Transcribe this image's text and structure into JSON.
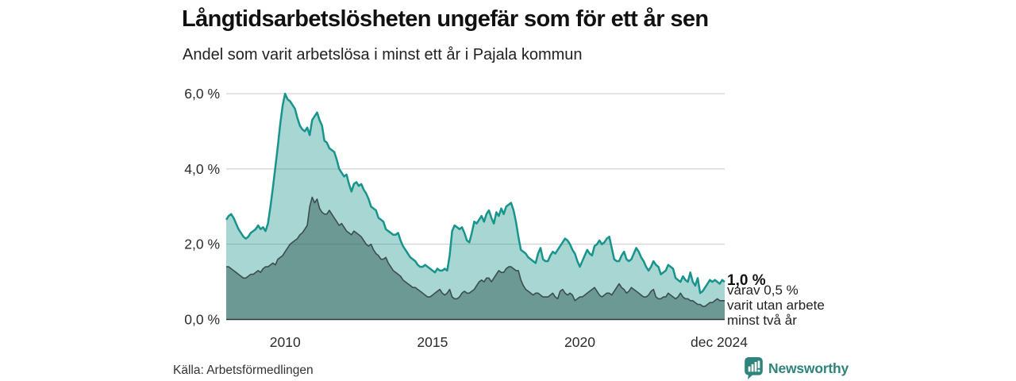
{
  "header": {
    "title": "Långtidsarbetslösheten ungefär som för ett år sen",
    "subtitle": "Andel som varit arbetslösa i minst ett år i Pajala kommun"
  },
  "footer": {
    "source": "Källa: Arbetsförmedlingen",
    "logo_text": "Newsworthy",
    "logo_icon": "bar-chart-speech-bubble-icon"
  },
  "colors": {
    "line_total": "#17948b",
    "fill_total": "rgba(23,148,139,0.38)",
    "line_two_years": "#3b4d4d",
    "fill_two_years": "rgba(40,80,74,0.45)",
    "gridline": "#c9c9c9",
    "baseline": "#333333",
    "axis_text": "#2b2b2b",
    "logo_teal": "#2e837a"
  },
  "chart_data": {
    "type": "area",
    "title": "Långtidsarbetslösheten ungefär som för ett år sen",
    "subtitle": "Andel som varit arbetslösa i minst ett år i Pajala kommun",
    "unit": "%",
    "frequency": "monthly",
    "start": "2008-01",
    "end": "2024-12",
    "grid": true,
    "ylim": [
      0,
      6
    ],
    "y_ticks": [
      {
        "value": 0,
        "label": "0,0 %"
      },
      {
        "value": 2,
        "label": "2,0 %"
      },
      {
        "value": 4,
        "label": "4,0 %"
      },
      {
        "value": 6,
        "label": "6,0 %"
      }
    ],
    "x_ticks": [
      {
        "index": 24,
        "label": "2010"
      },
      {
        "index": 84,
        "label": "2015"
      },
      {
        "index": 144,
        "label": "2020"
      },
      {
        "index": 203,
        "label": "dec 2024"
      }
    ],
    "end_labels": {
      "value_label": "1,0 %",
      "annotation_line1": "varav 0,5 %",
      "annotation_line2": "varit utan arbete",
      "annotation_line3": "minst två år"
    },
    "series": [
      {
        "name": "minst ett år",
        "values": [
          2.65,
          2.75,
          2.8,
          2.7,
          2.55,
          2.4,
          2.3,
          2.2,
          2.15,
          2.2,
          2.3,
          2.35,
          2.4,
          2.5,
          2.4,
          2.45,
          2.35,
          2.55,
          3.0,
          3.5,
          4.05,
          4.6,
          5.2,
          5.7,
          6.0,
          5.85,
          5.8,
          5.7,
          5.6,
          5.35,
          5.15,
          5.05,
          5.0,
          5.1,
          4.9,
          5.3,
          5.4,
          5.5,
          5.3,
          5.15,
          4.75,
          4.7,
          4.55,
          4.5,
          4.45,
          4.25,
          4.0,
          3.9,
          3.8,
          3.85,
          3.6,
          3.4,
          3.6,
          3.65,
          3.55,
          3.6,
          3.45,
          3.35,
          3.2,
          3.0,
          2.95,
          2.9,
          2.7,
          2.65,
          2.6,
          2.4,
          2.35,
          2.3,
          2.25,
          2.25,
          2.3,
          2.1,
          1.95,
          1.85,
          1.75,
          1.65,
          1.6,
          1.55,
          1.45,
          1.4,
          1.4,
          1.45,
          1.4,
          1.35,
          1.3,
          1.25,
          1.35,
          1.3,
          1.3,
          1.35,
          1.3,
          1.7,
          2.35,
          2.5,
          2.45,
          2.4,
          2.45,
          2.3,
          2.1,
          2.05,
          2.3,
          2.6,
          2.55,
          2.65,
          2.75,
          2.6,
          2.8,
          2.9,
          2.7,
          2.55,
          2.85,
          2.75,
          2.95,
          2.8,
          3.0,
          3.05,
          3.1,
          2.9,
          2.6,
          2.2,
          1.85,
          1.8,
          1.75,
          1.65,
          1.6,
          1.55,
          1.5,
          1.75,
          1.9,
          1.6,
          1.55,
          1.55,
          1.7,
          1.8,
          1.75,
          1.85,
          1.95,
          2.05,
          2.15,
          2.1,
          2.0,
          1.85,
          1.75,
          1.55,
          1.4,
          1.55,
          1.7,
          1.85,
          1.75,
          1.7,
          1.95,
          2.0,
          2.1,
          2.0,
          2.05,
          2.15,
          2.2,
          1.9,
          1.6,
          1.55,
          1.55,
          1.7,
          1.8,
          1.6,
          1.55,
          1.6,
          1.75,
          1.9,
          1.8,
          1.65,
          1.55,
          1.4,
          1.3,
          1.4,
          1.55,
          1.45,
          1.4,
          1.2,
          1.25,
          1.3,
          1.45,
          1.4,
          1.35,
          1.1,
          1.05,
          1.0,
          1.15,
          1.05,
          1.0,
          1.25,
          1.0,
          0.9,
          1.1,
          0.7,
          0.75,
          0.85,
          0.95,
          1.05,
          1.0,
          1.05,
          1.0,
          0.95,
          1.05,
          1.0
        ]
      },
      {
        "name": "minst två år",
        "values": [
          1.4,
          1.4,
          1.35,
          1.3,
          1.25,
          1.2,
          1.15,
          1.1,
          1.1,
          1.15,
          1.2,
          1.2,
          1.25,
          1.3,
          1.25,
          1.35,
          1.4,
          1.4,
          1.45,
          1.5,
          1.45,
          1.6,
          1.65,
          1.7,
          1.8,
          1.9,
          2.0,
          2.05,
          2.1,
          2.15,
          2.25,
          2.3,
          2.4,
          2.5,
          3.0,
          3.25,
          3.1,
          3.2,
          2.95,
          2.85,
          2.8,
          2.8,
          2.9,
          2.8,
          2.7,
          2.6,
          2.5,
          2.55,
          2.45,
          2.35,
          2.3,
          2.25,
          2.35,
          2.3,
          2.25,
          2.2,
          2.1,
          2.0,
          1.95,
          2.0,
          1.85,
          1.75,
          1.7,
          1.6,
          1.6,
          1.65,
          1.5,
          1.4,
          1.3,
          1.25,
          1.2,
          1.15,
          1.05,
          1.0,
          0.95,
          0.9,
          0.85,
          0.85,
          0.8,
          0.75,
          0.7,
          0.65,
          0.6,
          0.6,
          0.65,
          0.7,
          0.75,
          0.8,
          0.7,
          0.65,
          0.7,
          0.8,
          0.6,
          0.55,
          0.55,
          0.6,
          0.7,
          0.75,
          0.7,
          0.7,
          0.75,
          0.8,
          0.9,
          1.0,
          1.05,
          1.0,
          1.1,
          1.1,
          1.0,
          1.1,
          1.2,
          1.3,
          1.25,
          1.25,
          1.35,
          1.4,
          1.4,
          1.35,
          1.3,
          1.3,
          1.05,
          0.9,
          0.8,
          0.75,
          0.7,
          0.65,
          0.7,
          0.7,
          0.65,
          0.6,
          0.6,
          0.6,
          0.65,
          0.7,
          0.6,
          0.55,
          0.75,
          0.8,
          0.7,
          0.65,
          0.7,
          0.65,
          0.5,
          0.55,
          0.6,
          0.6,
          0.65,
          0.7,
          0.75,
          0.8,
          0.85,
          0.75,
          0.65,
          0.6,
          0.65,
          0.7,
          0.7,
          0.65,
          0.75,
          0.85,
          0.95,
          0.85,
          0.8,
          0.7,
          0.75,
          0.85,
          0.8,
          0.75,
          0.7,
          0.65,
          0.6,
          0.6,
          0.65,
          0.75,
          0.8,
          0.6,
          0.55,
          0.55,
          0.6,
          0.6,
          0.7,
          0.65,
          0.6,
          0.55,
          0.6,
          0.7,
          0.6,
          0.55,
          0.55,
          0.5,
          0.5,
          0.45,
          0.4,
          0.4,
          0.35,
          0.35,
          0.4,
          0.45,
          0.45,
          0.5,
          0.55,
          0.5,
          0.5,
          0.5
        ]
      }
    ]
  }
}
